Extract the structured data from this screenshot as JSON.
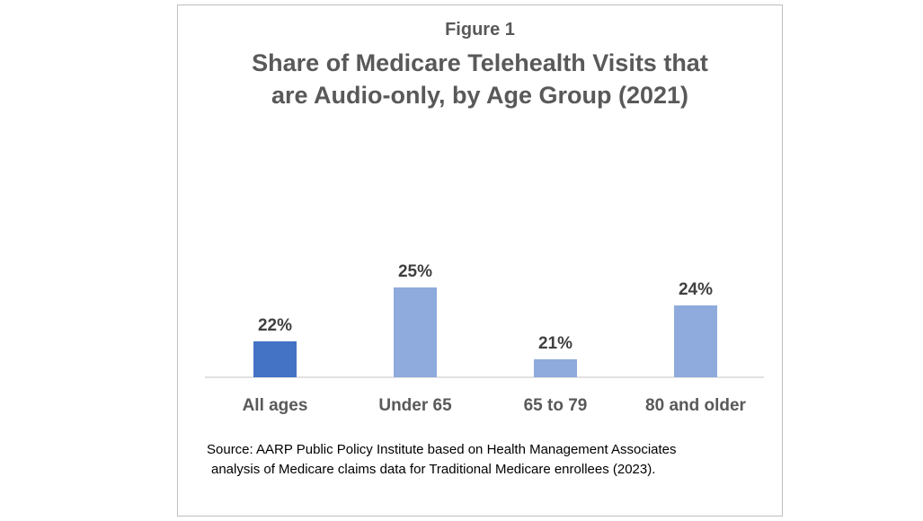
{
  "figure_label": "Figure 1",
  "title_line1": "Share of Medicare Telehealth Visits that",
  "title_line2": "are Audio-only, by Age Group (2021)",
  "source_line1": "Source: AARP Public Policy Institute based on Health Management Associates",
  "source_line2": "analysis of Medicare claims data for Traditional Medicare enrollees (2023).",
  "chart_data": {
    "type": "bar",
    "title": "Share of Medicare Telehealth Visits that are Audio-only, by Age Group (2021)",
    "categories": [
      "All ages",
      "Under 65",
      "65 to 79",
      "80 and older"
    ],
    "values": [
      22,
      25,
      21,
      24
    ],
    "data_labels": [
      "22%",
      "25%",
      "21%",
      "24%"
    ],
    "colors": [
      "#4472c4",
      "#8faadc",
      "#8faadc",
      "#8faadc"
    ],
    "xlabel": "",
    "ylabel": "",
    "grid": false,
    "legend": "none"
  }
}
